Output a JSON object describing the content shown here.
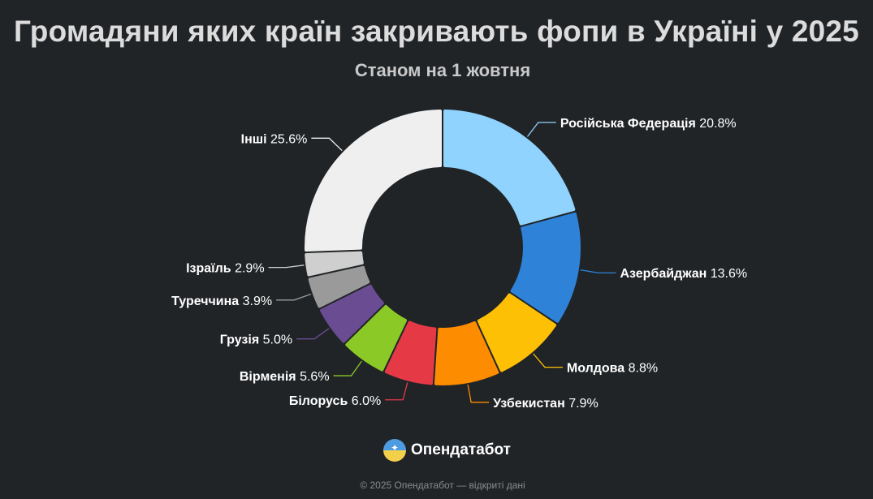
{
  "header": {
    "title": "Громадяни яких країн закривають фопи в Україні у 2025",
    "subtitle": "Станом на 1 жовтня"
  },
  "chart_data": {
    "type": "pie",
    "style": "donut",
    "title": "Громадяни яких країн закривають фопи в Україні у 2025",
    "subtitle": "Станом на 1 жовтня",
    "unit": "%",
    "slices": [
      {
        "label": "Російська Федерація",
        "value": 20.8,
        "display": "20.8%",
        "color": "#8fd3fe"
      },
      {
        "label": "Азербайджан",
        "value": 13.6,
        "display": "13.6%",
        "color": "#2e82d8"
      },
      {
        "label": "Молдова",
        "value": 8.8,
        "display": "8.8%",
        "color": "#fec005"
      },
      {
        "label": "Узбекистан",
        "value": 7.9,
        "display": "7.9%",
        "color": "#fd8c00"
      },
      {
        "label": "Білорусь",
        "value": 6.0,
        "display": "6.0%",
        "color": "#e63946"
      },
      {
        "label": "Вірменія",
        "value": 5.6,
        "display": "5.6%",
        "color": "#8ac926"
      },
      {
        "label": "Грузія",
        "value": 5.0,
        "display": "5.0%",
        "color": "#6a4c93"
      },
      {
        "label": "Туреччина",
        "value": 3.9,
        "display": "3.9%",
        "color": "#9a9a9a"
      },
      {
        "label": "Ізраїль",
        "value": 2.9,
        "display": "2.9%",
        "color": "#cfcfcf"
      },
      {
        "label": "Інші",
        "value": 25.6,
        "display": "25.6%",
        "color": "#efefef"
      }
    ]
  },
  "brand": {
    "name": "Опендатабот",
    "logo_icon": "opendatabot-logo-icon"
  },
  "footer": {
    "text": "© 2025 Опендатабот — відкриті дані"
  }
}
